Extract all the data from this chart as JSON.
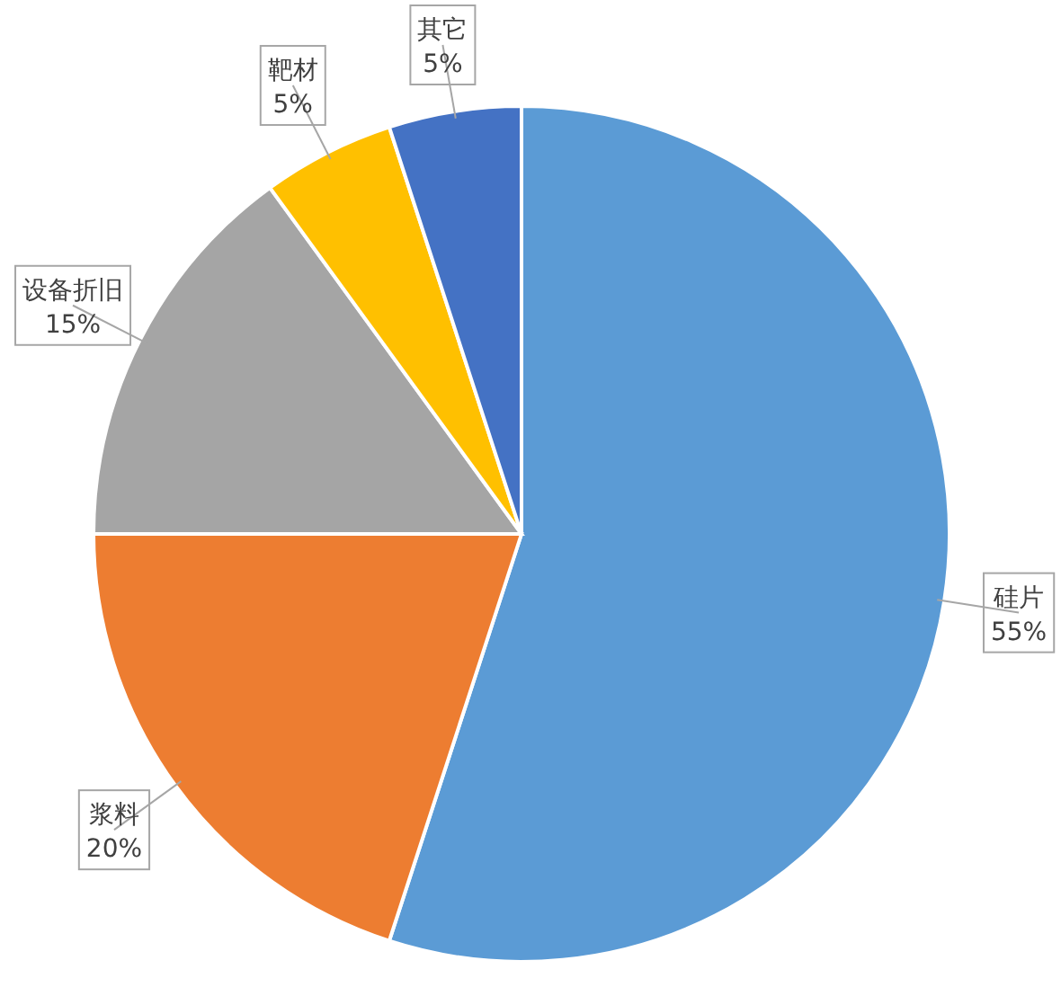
{
  "chart_data": {
    "type": "pie",
    "categories": [
      "硅片",
      "浆料",
      "设备折旧",
      "靶材",
      "其它"
    ],
    "values": [
      55,
      20,
      15,
      5,
      5
    ],
    "colors": [
      "#5b9bd5",
      "#ed7d31",
      "#a5a5a5",
      "#ffc000",
      "#4472c4"
    ],
    "value_labels": [
      "55%",
      "20%",
      "15%",
      "5%",
      "5%"
    ]
  }
}
